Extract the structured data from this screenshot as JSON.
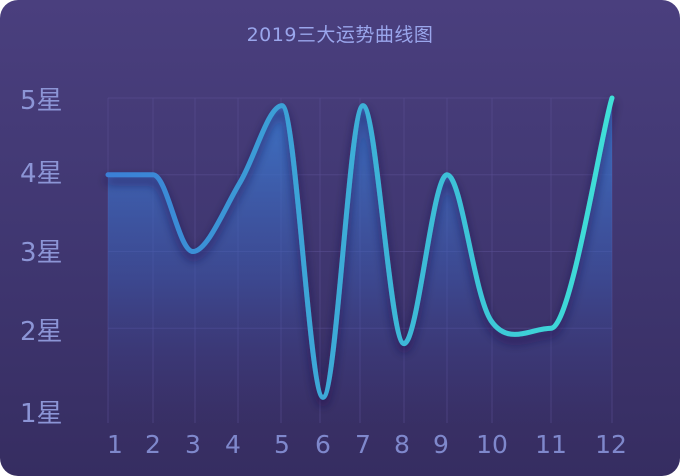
{
  "chart_data": {
    "type": "line",
    "title": "2019三大运势曲线图",
    "categories": [
      "1",
      "2",
      "3",
      "4",
      "5",
      "6",
      "7",
      "8",
      "9",
      "10",
      "11",
      "12"
    ],
    "y_tick_labels": [
      "1星",
      "2星",
      "3星",
      "4星",
      "5星"
    ],
    "ylim": [
      1,
      5
    ],
    "values": [
      4,
      4,
      3,
      3.9,
      4.9,
      1.1,
      4.9,
      1.8,
      4,
      2.1,
      2,
      5
    ],
    "grid": true,
    "smooth": true,
    "area_fill": true
  },
  "colors": {
    "background_top": "#4a3f7e",
    "background_bottom": "#362d61",
    "line_start": "#3a7fd6",
    "line_end": "#3fe0d8",
    "grid": "#5a4f93"
  }
}
